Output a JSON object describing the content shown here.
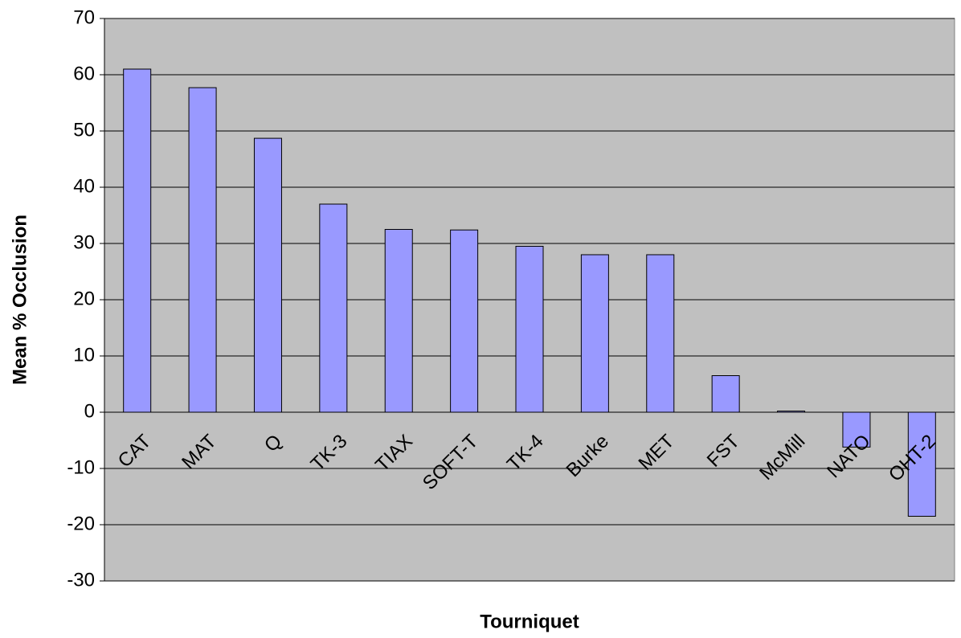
{
  "chart_data": {
    "type": "bar",
    "x_label": "Tourniquet",
    "y_label": "Mean % Occlusion",
    "categories": [
      "CAT",
      "MAT",
      "Q",
      "TK-3",
      "TIAX",
      "SOFT-T",
      "TK-4",
      "Burke",
      "MET",
      "FST",
      "McMill",
      "NATO",
      "OHT-2"
    ],
    "values": [
      61,
      57.7,
      48.7,
      37,
      32.5,
      32.4,
      29.5,
      28,
      28,
      6.5,
      0.2,
      -6.2,
      -18.5
    ],
    "color": "#9999ff",
    "ylim": [
      -30,
      70
    ],
    "yticks": [
      -30,
      -20,
      -10,
      0,
      10,
      20,
      30,
      40,
      50,
      60,
      70
    ],
    "grid": true
  }
}
